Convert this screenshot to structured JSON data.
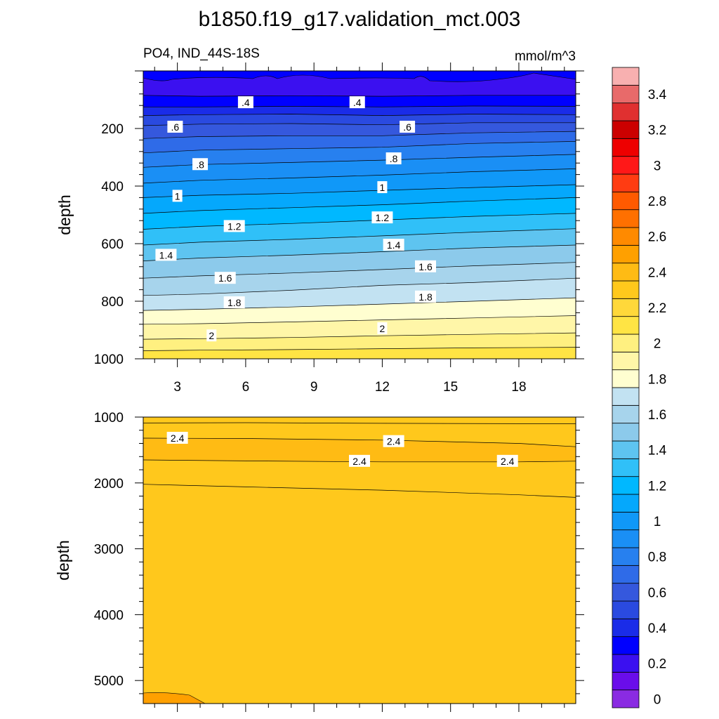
{
  "chart_data": {
    "type": "contour",
    "title": "b1850.f19_g17.validation_mct.003",
    "subtitle_left": "PO4, IND_44S-18S",
    "subtitle_right": "mmol/m^3",
    "panels": [
      {
        "name": "upper",
        "ylabel": "depth",
        "xlim": [
          1.5,
          20.5
        ],
        "ylim": [
          1000,
          0
        ],
        "xticks": [
          3,
          6,
          9,
          12,
          15,
          18
        ],
        "xtick_labels": [
          "3",
          "6",
          "9",
          "12",
          "15",
          "18"
        ],
        "yticks": [
          200,
          400,
          600,
          800,
          1000
        ],
        "ytick_labels": [
          "200",
          "400",
          "600",
          "800",
          "1000"
        ],
        "contour_lines": [
          {
            "value": 0.3,
            "x": [
              1.5,
              4,
              8,
              12,
              16,
              20.5
            ],
            "y": [
              85,
              88,
              86,
              88,
              85,
              85
            ]
          },
          {
            "value": 0.4,
            "x": [
              1.5,
              4,
              8,
              12,
              16,
              20.5
            ],
            "y": [
              125,
              125,
              123,
              125,
              122,
              123
            ]
          },
          {
            "value": 0.5,
            "x": [
              1.5,
              4,
              8,
              12,
              16,
              20.5
            ],
            "y": [
              155,
              152,
              150,
              155,
              150,
              152
            ]
          },
          {
            "value": 0.6,
            "x": [
              1.5,
              4,
              8,
              12,
              16,
              20.5
            ],
            "y": [
              190,
              185,
              183,
              187,
              180,
              180
            ]
          },
          {
            "value": 0.7,
            "x": [
              1.5,
              4,
              8,
              12,
              16,
              20.5
            ],
            "y": [
              235,
              228,
              225,
              225,
              215,
              210
            ]
          },
          {
            "value": 0.8,
            "x": [
              1.5,
              4,
              8,
              12,
              16,
              20.5
            ],
            "y": [
              285,
              275,
              270,
              265,
              252,
              245
            ]
          },
          {
            "value": 0.9,
            "x": [
              1.5,
              4,
              8,
              12,
              16,
              20.5
            ],
            "y": [
              335,
              325,
              318,
              310,
              300,
              290
            ]
          },
          {
            "value": 1.0,
            "x": [
              1.5,
              4,
              8,
              12,
              16,
              20.5
            ],
            "y": [
              390,
              380,
              372,
              362,
              350,
              340
            ]
          },
          {
            "value": 1.1,
            "x": [
              1.5,
              4,
              8,
              12,
              16,
              20.5
            ],
            "y": [
              440,
              432,
              425,
              415,
              405,
              395
            ]
          },
          {
            "value": 1.2,
            "x": [
              1.5,
              4,
              8,
              12,
              16,
              20.5
            ],
            "y": [
              495,
              485,
              475,
              465,
              452,
              440
            ]
          },
          {
            "value": 1.3,
            "x": [
              1.5,
              4,
              8,
              12,
              16,
              20.5
            ],
            "y": [
              550,
              540,
              530,
              518,
              505,
              495
            ]
          },
          {
            "value": 1.4,
            "x": [
              1.5,
              4,
              8,
              12,
              16,
              20.5
            ],
            "y": [
              605,
              595,
              585,
              573,
              560,
              548
            ]
          },
          {
            "value": 1.5,
            "x": [
              1.5,
              4,
              8,
              12,
              16,
              20.5
            ],
            "y": [
              660,
              650,
              640,
              628,
              615,
              605
            ]
          },
          {
            "value": 1.6,
            "x": [
              1.5,
              4,
              8,
              12,
              16,
              20.5
            ],
            "y": [
              720,
              712,
              702,
              690,
              677,
              665
            ]
          },
          {
            "value": 1.7,
            "x": [
              1.5,
              4,
              8,
              12,
              16,
              20.5
            ],
            "y": [
              780,
              775,
              762,
              745,
              735,
              720
            ]
          },
          {
            "value": 1.8,
            "x": [
              1.5,
              4,
              8,
              12,
              16,
              20.5
            ],
            "y": [
              832,
              828,
              820,
              810,
              800,
              788
            ]
          },
          {
            "value": 1.9,
            "x": [
              1.5,
              4,
              8,
              12,
              16,
              20.5
            ],
            "y": [
              880,
              878,
              872,
              865,
              858,
              850
            ]
          },
          {
            "value": 2.0,
            "x": [
              1.5,
              4,
              8,
              12,
              16,
              20.5
            ],
            "y": [
              932,
              930,
              926,
              920,
              915,
              910
            ]
          },
          {
            "value": 2.1,
            "x": [
              1.5,
              4,
              8,
              12,
              16,
              20.5
            ],
            "y": [
              972,
              970,
              968,
              965,
              962,
              960
            ]
          }
        ],
        "contour_labels": [
          {
            "text": ".4",
            "x": 6.0,
            "y": 110
          },
          {
            "text": ".4",
            "x": 10.9,
            "y": 110
          },
          {
            "text": ".6",
            "x": 2.9,
            "y": 195
          },
          {
            "text": ".6",
            "x": 13.1,
            "y": 195
          },
          {
            "text": ".8",
            "x": 4.0,
            "y": 325
          },
          {
            "text": ".8",
            "x": 12.5,
            "y": 305
          },
          {
            "text": "1",
            "x": 3.0,
            "y": 435
          },
          {
            "text": "1",
            "x": 12.0,
            "y": 405
          },
          {
            "text": "1.2",
            "x": 5.5,
            "y": 540
          },
          {
            "text": "1.2",
            "x": 12.0,
            "y": 510
          },
          {
            "text": "1.4",
            "x": 2.5,
            "y": 640
          },
          {
            "text": "1.4",
            "x": 12.5,
            "y": 605
          },
          {
            "text": "1.6",
            "x": 5.1,
            "y": 720
          },
          {
            "text": "1.6",
            "x": 13.9,
            "y": 680
          },
          {
            "text": "1.8",
            "x": 5.5,
            "y": 805
          },
          {
            "text": "1.8",
            "x": 13.9,
            "y": 785
          },
          {
            "text": "2",
            "x": 4.5,
            "y": 920
          },
          {
            "text": "2",
            "x": 12.0,
            "y": 895
          }
        ]
      },
      {
        "name": "lower",
        "ylabel": "depth",
        "xlim": [
          1.5,
          20.5
        ],
        "ylim": [
          5350,
          1000
        ],
        "xticks": [
          3,
          6,
          9,
          12,
          15,
          18
        ],
        "yticks": [
          1000,
          2000,
          3000,
          4000,
          5000
        ],
        "ytick_labels": [
          "1000",
          "2000",
          "3000",
          "4000",
          "5000"
        ],
        "contour_lines": [
          {
            "value": 2.3,
            "x": [
              1.5,
              6,
              12,
              18,
              20.5
            ],
            "y": [
              1090,
              1085,
              1095,
              1100,
              1100
            ]
          },
          {
            "value": 2.4,
            "x": [
              1.5,
              6,
              12,
              18,
              20.5
            ],
            "y": [
              1320,
              1325,
              1350,
              1400,
              1450
            ]
          },
          {
            "value": 2.4,
            "x": [
              1.5,
              6,
              12,
              18,
              20.5
            ],
            "y": [
              1650,
              1665,
              1680,
              1680,
              1670
            ]
          },
          {
            "value": 2.3,
            "x": [
              1.5,
              6,
              12,
              18,
              20.5
            ],
            "y": [
              2020,
              2060,
              2110,
              2180,
              2220
            ]
          }
        ],
        "contour_labels": [
          {
            "text": "2.4",
            "x": 3.0,
            "y": 1320
          },
          {
            "text": "2.4",
            "x": 12.5,
            "y": 1370
          },
          {
            "text": "2.4",
            "x": 11.0,
            "y": 1670
          },
          {
            "text": "2.4",
            "x": 17.5,
            "y": 1670
          }
        ]
      }
    ],
    "colorbar": {
      "levels": [
        0,
        0.1,
        0.2,
        0.3,
        0.4,
        0.5,
        0.6,
        0.7,
        0.8,
        0.9,
        1.0,
        1.1,
        1.2,
        1.3,
        1.4,
        1.5,
        1.6,
        1.7,
        1.8,
        1.9,
        2.0,
        2.1,
        2.2,
        2.3,
        2.4,
        2.5,
        2.6,
        2.7,
        2.8,
        2.9,
        3.0,
        3.1,
        3.2,
        3.3,
        3.4,
        3.5
      ],
      "colors": [
        "#8a2be2",
        "#6a0dea",
        "#3b10f0",
        "#0000ff",
        "#1a2ce8",
        "#2a4ae0",
        "#3558dd",
        "#2f6be8",
        "#2780ef",
        "#1a8ff5",
        "#1098f8",
        "#05a8fc",
        "#00b8ff",
        "#30c0f8",
        "#5ec4f0",
        "#8ccaeb",
        "#a7d4ec",
        "#c2e2f2",
        "#fffed0",
        "#fff6a8",
        "#fff080",
        "#ffe444",
        "#ffd83a",
        "#ffc81c",
        "#ffbb14",
        "#ffa000",
        "#ff8a00",
        "#ff7000",
        "#ff5a00",
        "#ff3c12",
        "#ff1818",
        "#ee0000",
        "#cc0000",
        "#e03030",
        "#e86a6a",
        "#f8b0b0"
      ],
      "tick_labels": [
        "0",
        "0.2",
        "0.4",
        "0.6",
        "0.8",
        "1",
        "1.2",
        "1.4",
        "1.6",
        "1.8",
        "2",
        "2.2",
        "2.4",
        "2.6",
        "2.8",
        "3",
        "3.2",
        "3.4"
      ]
    }
  }
}
